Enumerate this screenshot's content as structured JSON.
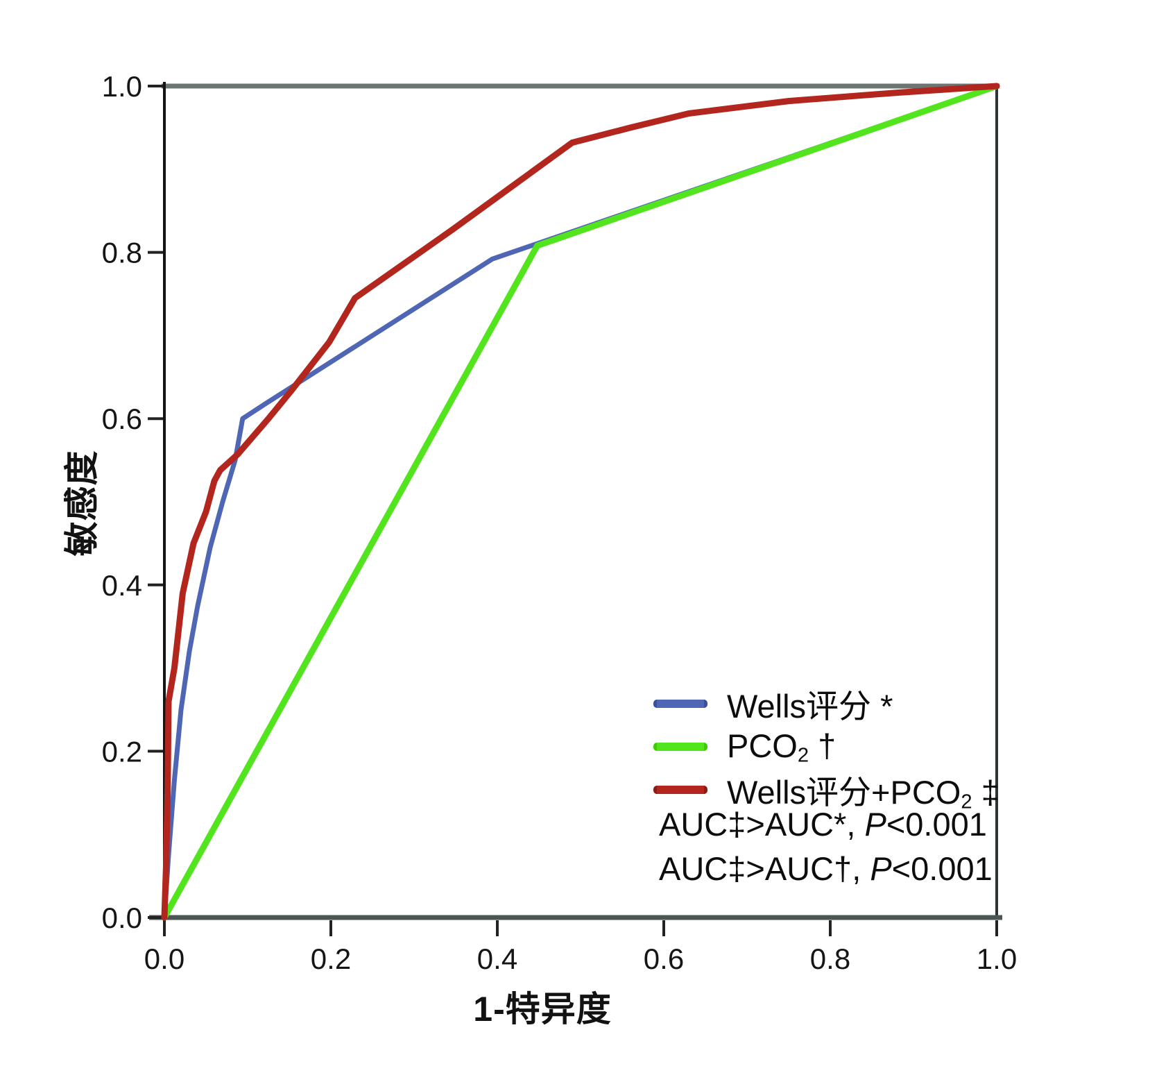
{
  "figure": {
    "background": "#ffffff"
  },
  "chart_data": {
    "type": "line",
    "title": "",
    "xlabel": "1-特异度",
    "ylabel": "敏感度",
    "xlim": [
      0.0,
      1.0
    ],
    "ylim": [
      0.0,
      1.0
    ],
    "x_ticks": [
      "0.0",
      "0.2",
      "0.4",
      "0.6",
      "0.8",
      "1.0"
    ],
    "y_ticks": [
      "0.0",
      "0.2",
      "0.4",
      "0.6",
      "0.8",
      "1.0"
    ],
    "grid": false,
    "legend_position": "lower-right",
    "series": [
      {
        "name": "Wells评分 *",
        "color": "#4e66b4",
        "edge_color": "#3a4f9e",
        "stroke_width": 7,
        "points": [
          [
            0,
            0
          ],
          [
            0.005,
            0.075
          ],
          [
            0.012,
            0.165
          ],
          [
            0.02,
            0.25
          ],
          [
            0.03,
            0.32
          ],
          [
            0.04,
            0.375
          ],
          [
            0.055,
            0.445
          ],
          [
            0.07,
            0.5
          ],
          [
            0.085,
            0.55
          ],
          [
            0.094,
            0.6
          ],
          [
            0.12,
            0.617
          ],
          [
            0.394,
            0.792
          ],
          [
            1,
            1
          ]
        ]
      },
      {
        "name": "PCO2 †",
        "color": "#52e41c",
        "edge_color": "#3fcc00",
        "stroke_width": 9,
        "points": [
          [
            0,
            0
          ],
          [
            0.448,
            0.808
          ],
          [
            1,
            1
          ]
        ]
      },
      {
        "name": "Wells评分+PCO2 ‡",
        "color": "#b2261d",
        "edge_color": "#8f1a14",
        "stroke_width": 9,
        "points": [
          [
            0,
            0
          ],
          [
            0.002,
            0.06
          ],
          [
            0.004,
            0.16
          ],
          [
            0.005,
            0.26
          ],
          [
            0.012,
            0.3
          ],
          [
            0.022,
            0.39
          ],
          [
            0.035,
            0.45
          ],
          [
            0.05,
            0.488
          ],
          [
            0.06,
            0.525
          ],
          [
            0.067,
            0.538
          ],
          [
            0.088,
            0.557
          ],
          [
            0.125,
            0.6
          ],
          [
            0.152,
            0.633
          ],
          [
            0.198,
            0.692
          ],
          [
            0.229,
            0.745
          ],
          [
            0.347,
            0.828
          ],
          [
            0.49,
            0.932
          ],
          [
            0.56,
            0.95
          ],
          [
            0.63,
            0.967
          ],
          [
            0.75,
            0.982
          ],
          [
            0.88,
            0.992
          ],
          [
            1,
            1
          ]
        ]
      }
    ]
  },
  "axes_style": {
    "left_axis_color": "#141414",
    "bottom_axis_color": "#4d5454",
    "top_border_color": "#6d7474",
    "right_border_color": "#2e3434",
    "tick_color": "#222222",
    "tick_label_color": "#151515"
  },
  "legend": {
    "items": [
      {
        "pre": "Wells评分",
        "sub": "",
        "post": " *",
        "color": "#4e66b4",
        "edge": "#3a4f9e"
      },
      {
        "pre": "PCO",
        "sub": "2",
        "post": " †",
        "color": "#52e41c",
        "edge": "#3fcc00"
      },
      {
        "pre": "Wells评分+PCO",
        "sub": "2",
        "post": " ‡",
        "color": "#b2261d",
        "edge": "#8f1a14"
      }
    ]
  },
  "annotations": [
    {
      "pre": "AUC‡>AUC*, ",
      "italic": "P",
      "post": "<0.001"
    },
    {
      "pre": "AUC‡>AUC†, ",
      "italic": "P",
      "post": "<0.001"
    }
  ]
}
